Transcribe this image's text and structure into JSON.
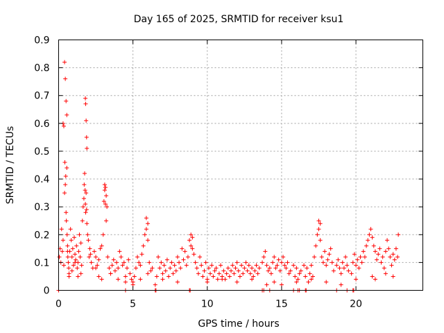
{
  "chart_data": {
    "type": "scatter",
    "title": "Day 165 of 2025, SRMTID for receiver ksu1",
    "xlabel": "GPS time / hours",
    "ylabel": "SRMTID / TECUs",
    "xlim": [
      0,
      24.5
    ],
    "ylim": [
      0,
      0.9
    ],
    "xticks": [
      0,
      5,
      10,
      15,
      20
    ],
    "yticks": [
      0,
      0.1,
      0.2,
      0.3,
      0.4,
      0.5,
      0.6,
      0.7,
      0.8,
      0.9
    ],
    "xtick_labels": [
      "0",
      "5",
      "10",
      "15",
      "20"
    ],
    "ytick_labels": [
      "0",
      "0.1",
      "0.2",
      "0.3",
      "0.4",
      "0.5",
      "0.6",
      "0.7",
      "0.8",
      "0.9"
    ],
    "grid": true,
    "marker": "+",
    "color": "#ff0000",
    "series": [
      {
        "name": "SRMTID",
        "x": [
          0.05,
          0.1,
          0.15,
          0.2,
          0.25,
          0.3,
          0.35,
          0.4,
          0.42,
          0.45,
          0.48,
          0.5,
          0.52,
          0.55,
          0.57,
          0.6,
          0.62,
          0.65,
          0.68,
          0.7,
          0.75,
          0.8,
          0.85,
          0.9,
          0.95,
          1.0,
          1.05,
          1.1,
          1.15,
          1.2,
          1.25,
          1.3,
          1.35,
          1.4,
          1.45,
          1.5,
          1.55,
          1.6,
          1.65,
          1.7,
          1.72,
          1.75,
          1.78,
          1.8,
          1.82,
          1.85,
          1.88,
          1.9,
          1.95,
          2.0,
          2.05,
          2.1,
          2.15,
          2.2,
          2.3,
          2.4,
          2.5,
          2.6,
          2.7,
          2.8,
          2.9,
          3.0,
          3.05,
          3.1,
          3.15,
          3.2,
          3.3,
          3.4,
          3.5,
          3.6,
          3.7,
          3.8,
          3.9,
          4.0,
          4.1,
          4.2,
          4.3,
          4.4,
          4.5,
          4.6,
          4.7,
          4.8,
          4.9,
          5.0,
          5.1,
          5.2,
          5.3,
          5.4,
          5.5,
          5.6,
          5.7,
          5.8,
          5.9,
          6.0,
          6.1,
          6.2,
          6.3,
          6.5,
          6.6,
          6.7,
          6.8,
          6.9,
          7.0,
          7.1,
          7.2,
          7.3,
          7.4,
          7.5,
          7.6,
          7.7,
          7.8,
          7.9,
          8.0,
          8.1,
          8.2,
          8.3,
          8.4,
          8.5,
          8.6,
          8.7,
          8.8,
          8.9,
          9.0,
          9.1,
          9.2,
          9.3,
          9.4,
          9.5,
          9.6,
          9.7,
          9.8,
          9.9,
          10.0,
          10.1,
          10.2,
          10.3,
          10.4,
          10.5,
          10.6,
          10.7,
          10.8,
          10.9,
          11.0,
          11.1,
          11.2,
          11.3,
          11.4,
          11.5,
          11.6,
          11.7,
          11.8,
          11.9,
          12.0,
          12.1,
          12.2,
          12.3,
          12.4,
          12.5,
          12.6,
          12.7,
          12.8,
          12.9,
          13.0,
          13.1,
          13.2,
          13.3,
          13.4,
          13.5,
          13.7,
          13.8,
          13.9,
          14.0,
          14.1,
          14.2,
          14.3,
          14.4,
          14.5,
          14.6,
          14.7,
          14.8,
          14.9,
          15.0,
          15.1,
          15.2,
          15.3,
          15.4,
          15.5,
          15.6,
          15.8,
          15.9,
          16.0,
          16.1,
          16.2,
          16.3,
          16.5,
          16.6,
          16.7,
          16.8,
          16.9,
          17.0,
          17.1,
          17.2,
          17.3,
          17.4,
          17.5,
          17.6,
          17.7,
          17.8,
          17.9,
          18.0,
          18.1,
          18.2,
          18.3,
          18.4,
          18.5,
          18.7,
          18.8,
          18.9,
          19.0,
          19.1,
          19.2,
          19.3,
          19.4,
          19.5,
          19.7,
          19.8,
          19.9,
          20.0,
          20.1,
          20.2,
          20.3,
          20.4,
          20.5,
          20.6,
          20.7,
          20.8,
          20.9,
          21.0,
          21.1,
          21.2,
          21.3,
          21.4,
          21.5,
          21.6,
          21.7,
          21.8,
          21.9,
          22.0,
          22.1,
          22.2,
          22.3,
          22.4,
          22.5,
          22.6,
          22.7,
          22.8,
          22.85,
          0.4,
          0.45,
          0.5,
          0.55,
          1.8,
          1.82,
          1.85,
          1.88,
          1.9,
          3.1,
          3.15,
          3.2,
          3.25,
          5.9,
          6.0,
          17.5,
          17.6,
          0.3,
          0.35,
          0.6,
          0.7,
          0.9,
          1.1,
          1.3,
          1.5,
          2.5,
          2.7,
          2.9,
          3.5,
          4.0,
          4.5,
          5.0,
          5.5,
          6.0,
          7.0,
          8.0,
          8.9,
          9.0,
          10.0,
          11.0,
          12.0,
          13.0,
          14.0,
          14.5,
          15.0,
          16.0,
          17.0,
          18.0,
          19.0,
          20.0,
          21.1,
          21.3,
          22.0,
          22.5,
          0.0,
          4.5,
          6.5,
          6.55,
          8.8,
          8.85,
          13.7,
          13.8,
          14.2,
          15.8,
          16.1,
          16.2,
          16.6,
          16.65,
          18.7,
          19.4,
          19.8,
          19.85
        ],
        "y": [
          0.12,
          0.15,
          0.1,
          0.22,
          0.14,
          0.18,
          0.09,
          0.35,
          0.46,
          0.38,
          0.41,
          0.28,
          0.25,
          0.44,
          0.2,
          0.16,
          0.12,
          0.1,
          0.08,
          0.06,
          0.14,
          0.22,
          0.18,
          0.12,
          0.15,
          0.09,
          0.19,
          0.13,
          0.11,
          0.16,
          0.08,
          0.1,
          0.14,
          0.2,
          0.12,
          0.17,
          0.09,
          0.25,
          0.3,
          0.33,
          0.38,
          0.42,
          0.36,
          0.31,
          0.28,
          0.35,
          0.29,
          0.24,
          0.2,
          0.18,
          0.12,
          0.15,
          0.13,
          0.1,
          0.08,
          0.14,
          0.12,
          0.09,
          0.11,
          0.15,
          0.16,
          0.2,
          0.32,
          0.36,
          0.31,
          0.25,
          0.12,
          0.08,
          0.06,
          0.09,
          0.11,
          0.07,
          0.1,
          0.08,
          0.14,
          0.12,
          0.09,
          0.1,
          0.05,
          0.08,
          0.11,
          0.06,
          0.04,
          0.03,
          0.05,
          0.08,
          0.12,
          0.1,
          0.09,
          0.13,
          0.16,
          0.2,
          0.22,
          0.18,
          0.1,
          0.07,
          0.08,
          0.02,
          0.05,
          0.12,
          0.08,
          0.1,
          0.06,
          0.09,
          0.07,
          0.11,
          0.05,
          0.08,
          0.1,
          0.06,
          0.09,
          0.07,
          0.12,
          0.1,
          0.08,
          0.15,
          0.11,
          0.14,
          0.09,
          0.12,
          0.18,
          0.16,
          0.15,
          0.13,
          0.1,
          0.08,
          0.06,
          0.12,
          0.09,
          0.05,
          0.07,
          0.1,
          0.04,
          0.08,
          0.06,
          0.09,
          0.05,
          0.07,
          0.08,
          0.04,
          0.06,
          0.09,
          0.05,
          0.07,
          0.04,
          0.06,
          0.08,
          0.05,
          0.07,
          0.09,
          0.06,
          0.08,
          0.1,
          0.07,
          0.05,
          0.09,
          0.06,
          0.08,
          0.1,
          0.07,
          0.09,
          0.06,
          0.08,
          0.05,
          0.07,
          0.09,
          0.06,
          0.08,
          0.1,
          0.12,
          0.14,
          0.09,
          0.07,
          0.08,
          0.06,
          0.1,
          0.12,
          0.08,
          0.09,
          0.11,
          0.07,
          0.1,
          0.12,
          0.09,
          0.08,
          0.1,
          0.06,
          0.07,
          0.09,
          0.05,
          0.08,
          0.04,
          0.06,
          0.07,
          0.09,
          0.05,
          0.08,
          0.03,
          0.06,
          0.09,
          0.05,
          0.12,
          0.16,
          0.2,
          0.22,
          0.18,
          0.12,
          0.1,
          0.14,
          0.09,
          0.11,
          0.13,
          0.15,
          0.1,
          0.07,
          0.09,
          0.11,
          0.08,
          0.06,
          0.1,
          0.08,
          0.12,
          0.09,
          0.07,
          0.06,
          0.1,
          0.13,
          0.09,
          0.11,
          0.08,
          0.12,
          0.1,
          0.14,
          0.12,
          0.16,
          0.18,
          0.2,
          0.22,
          0.19,
          0.16,
          0.14,
          0.11,
          0.13,
          0.15,
          0.1,
          0.12,
          0.08,
          0.14,
          0.18,
          0.15,
          0.12,
          0.09,
          0.13,
          0.11,
          0.15,
          0.12,
          0.2,
          0.82,
          0.76,
          0.68,
          0.63,
          0.69,
          0.67,
          0.61,
          0.55,
          0.51,
          0.38,
          0.37,
          0.34,
          0.3,
          0.26,
          0.24,
          0.25,
          0.24,
          0.6,
          0.59,
          0.14,
          0.05,
          0.07,
          0.1,
          0.05,
          0.06,
          0.08,
          0.05,
          0.04,
          0.06,
          0.04,
          0.03,
          0.02,
          0.04,
          0.06,
          0.04,
          0.03,
          0.2,
          0.19,
          0.03,
          0.04,
          0.03,
          0.04,
          0.02,
          0.03,
          0.02,
          0.03,
          0.04,
          0.03,
          0.02,
          0.04,
          0.05,
          0.04,
          0.06,
          0.05,
          0.0,
          0.0,
          0.0,
          0.0,
          0.0,
          0.0,
          0.0,
          0.0,
          0.0,
          0.0,
          0.0,
          0.0,
          0.0,
          0.0,
          0.0,
          0.0,
          0.0,
          0.0
        ]
      }
    ]
  }
}
